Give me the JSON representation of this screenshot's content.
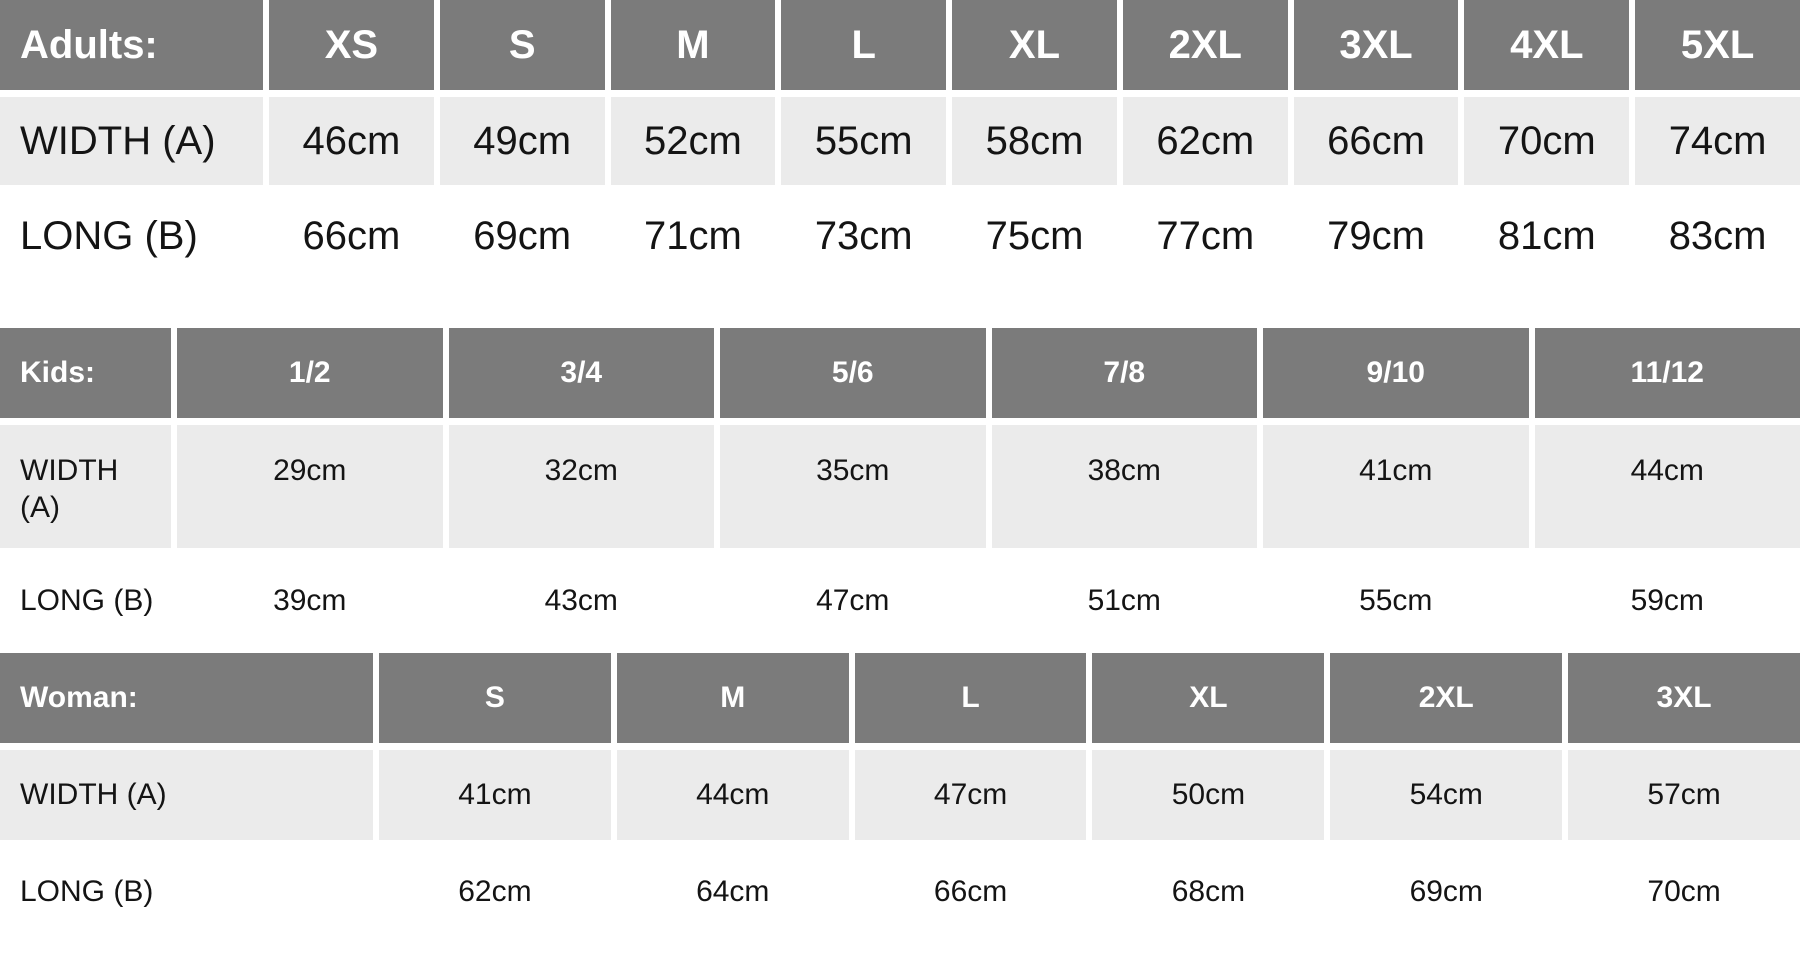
{
  "colors": {
    "header_bg": "#7b7b7b",
    "header_text": "#ffffff",
    "alt_row_bg": "#ebebeb",
    "body_text": "#141414",
    "page_bg": "#ffffff"
  },
  "tables": [
    {
      "label": "Adults:",
      "sizes": [
        "XS",
        "S",
        "M",
        "L",
        "XL",
        "2XL",
        "3XL",
        "4XL",
        "5XL"
      ],
      "rows": [
        {
          "label": "WIDTH (A)",
          "values": [
            "46cm",
            "49cm",
            "52cm",
            "55cm",
            "58cm",
            "62cm",
            "66cm",
            "70cm",
            "74cm"
          ]
        },
        {
          "label": "LONG (B)",
          "values": [
            "66cm",
            "69cm",
            "71cm",
            "73cm",
            "75cm",
            "77cm",
            "79cm",
            "81cm",
            "83cm"
          ]
        }
      ]
    },
    {
      "label": "Kids:",
      "sizes": [
        "1/2",
        "3/4",
        "5/6",
        "7/8",
        "9/10",
        "11/12"
      ],
      "rows": [
        {
          "label": "WIDTH (A)",
          "values": [
            "29cm",
            "32cm",
            "35cm",
            "38cm",
            "41cm",
            "44cm"
          ]
        },
        {
          "label": "LONG (B)",
          "values": [
            "39cm",
            "43cm",
            "47cm",
            "51cm",
            "55cm",
            "59cm"
          ]
        }
      ]
    },
    {
      "label": "Woman:",
      "sizes": [
        "S",
        "M",
        "L",
        "XL",
        "2XL",
        "3XL"
      ],
      "rows": [
        {
          "label": "WIDTH (A)",
          "values": [
            "41cm",
            "44cm",
            "47cm",
            "50cm",
            "54cm",
            "57cm"
          ]
        },
        {
          "label": "LONG (B)",
          "values": [
            "62cm",
            "64cm",
            "66cm",
            "68cm",
            "69cm",
            "70cm"
          ]
        }
      ]
    }
  ]
}
